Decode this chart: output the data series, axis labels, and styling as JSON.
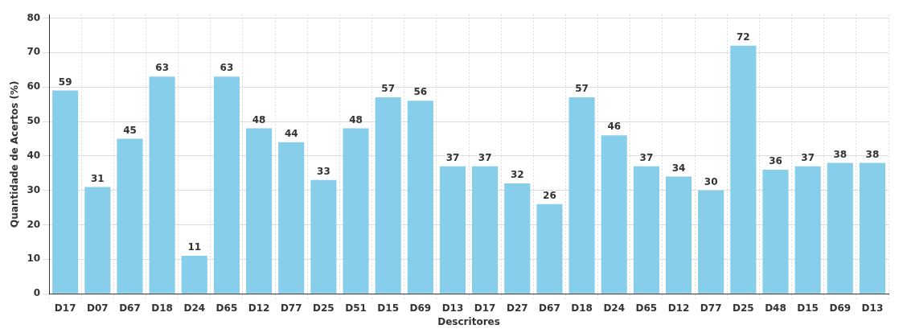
{
  "chart_data": {
    "type": "bar",
    "xlabel": "Descritores",
    "ylabel": "Quantidade de Acertos (%)",
    "categories": [
      "D17",
      "D07",
      "D67",
      "D18",
      "D24",
      "D65",
      "D12",
      "D77",
      "D25",
      "D51",
      "D15",
      "D69",
      "D13",
      "D17",
      "D27",
      "D67",
      "D18",
      "D24",
      "D65",
      "D12",
      "D77",
      "D25",
      "D48",
      "D15",
      "D69",
      "D13"
    ],
    "values": [
      59,
      31,
      45,
      63,
      11,
      63,
      48,
      44,
      33,
      48,
      57,
      56,
      37,
      37,
      32,
      26,
      57,
      46,
      37,
      34,
      30,
      72,
      36,
      37,
      38,
      38
    ],
    "color": "#87ceeb",
    "ylim": [
      0,
      81
    ],
    "yticks": [
      0,
      10,
      20,
      30,
      40,
      50,
      60,
      70,
      80
    ],
    "grid": true,
    "data_labels": true,
    "legend": false
  }
}
